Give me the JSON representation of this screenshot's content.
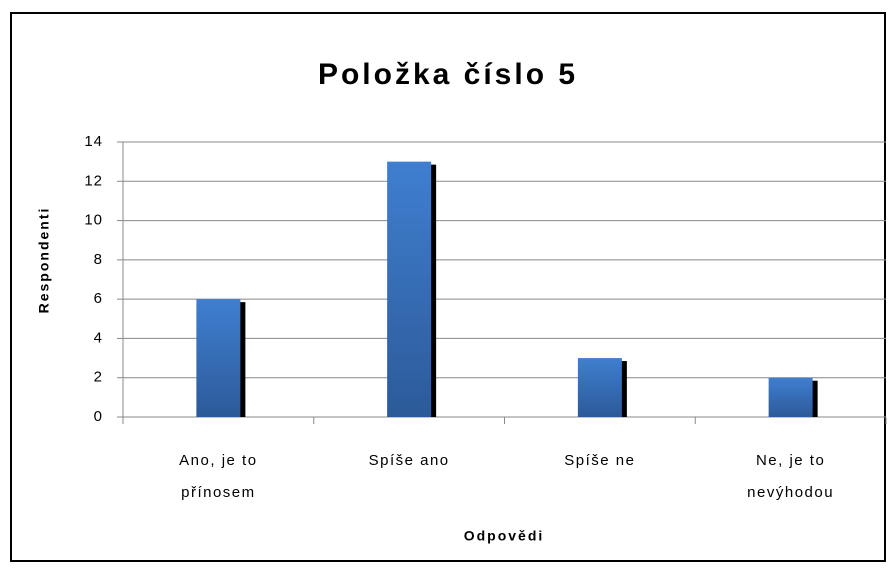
{
  "chart_data": {
    "type": "bar",
    "title": "Položka číslo 5",
    "categories": [
      "Ano, je to přínosem",
      "Spíše ano",
      "Spíše ne",
      "Ne, je to nevýhodou"
    ],
    "values": [
      6,
      13,
      3,
      2
    ],
    "color": "#3a70bd",
    "ylim": [
      0,
      14
    ],
    "yticks": [
      0,
      2,
      4,
      6,
      8,
      10,
      12,
      14
    ],
    "grid": true,
    "x_label": "Odpovědi",
    "y_label": "Respondenti"
  }
}
